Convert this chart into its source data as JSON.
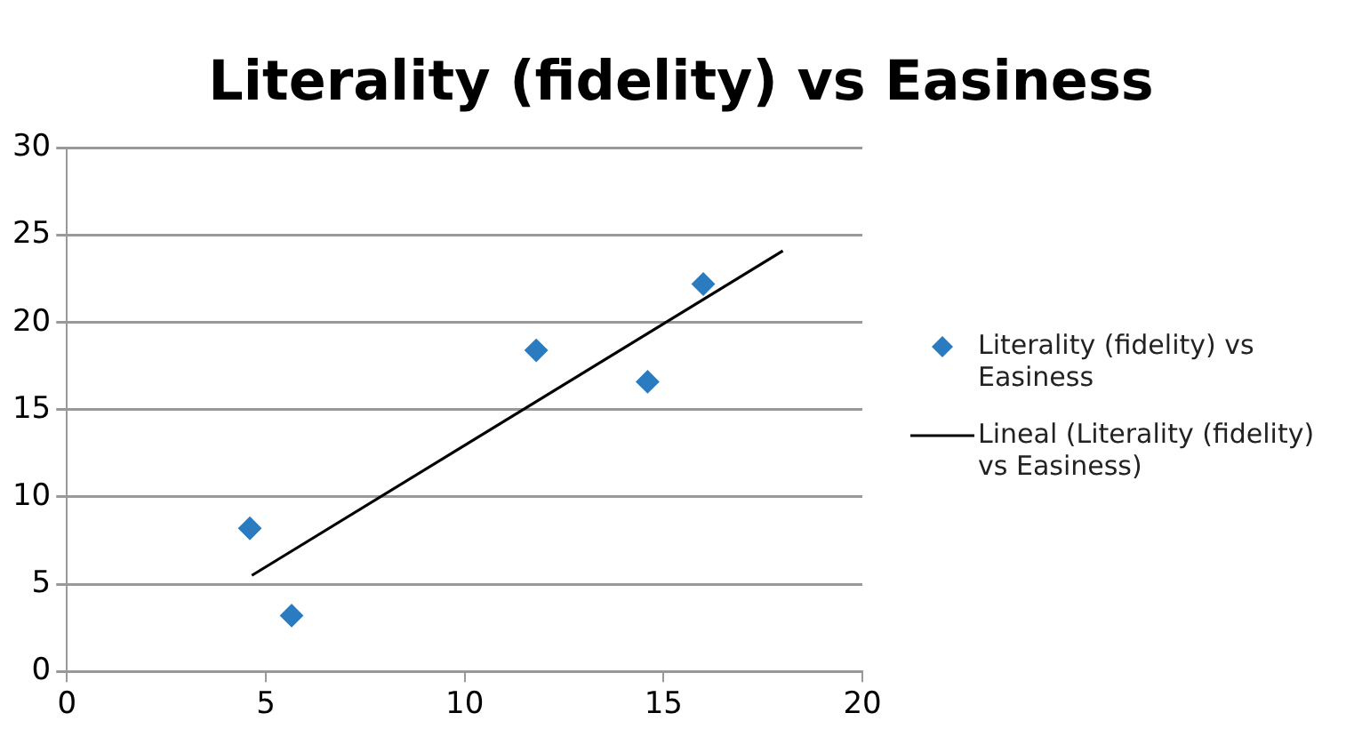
{
  "chart_data": {
    "type": "scatter",
    "title": "Literality (fidelity) vs Easiness",
    "marker": "diamond",
    "grid": "y",
    "legend": "right",
    "xlim": [
      0,
      20
    ],
    "xticks": [
      0,
      5,
      10,
      15,
      20
    ],
    "ylim": [
      0,
      30
    ],
    "yticks": [
      0,
      5,
      10,
      15,
      20,
      25,
      30
    ],
    "series": [
      {
        "name": "Literality (fidelity) vs Easiness",
        "color": "#2a7bc0",
        "x": [
          4.6,
          5.65,
          11.8,
          14.6,
          16.0
        ],
        "values": [
          8.2,
          3.2,
          18.4,
          16.6,
          22.2
        ]
      },
      {
        "name": "Lineal (Literality (fidelity) vs Easiness)",
        "type": "line",
        "marker": "none",
        "color": "#000000",
        "x": [
          4.65,
          18.0
        ],
        "values": [
          5.5,
          24.1
        ]
      }
    ]
  }
}
